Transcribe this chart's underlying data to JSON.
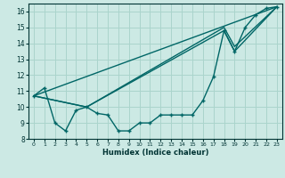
{
  "xlabel": "Humidex (Indice chaleur)",
  "xlim": [
    -0.5,
    23.5
  ],
  "ylim": [
    8,
    16.5
  ],
  "yticks": [
    8,
    9,
    10,
    11,
    12,
    13,
    14,
    15,
    16
  ],
  "xticks": [
    0,
    1,
    2,
    3,
    4,
    5,
    6,
    7,
    8,
    9,
    10,
    11,
    12,
    13,
    14,
    15,
    16,
    17,
    18,
    19,
    20,
    21,
    22,
    23
  ],
  "bg_color": "#cce9e4",
  "grid_color": "#aad4cc",
  "line_color": "#006666",
  "line1_x": [
    0,
    1,
    2,
    3,
    4,
    5,
    6,
    7,
    8,
    9,
    10,
    11,
    12,
    13,
    14,
    15,
    16,
    17,
    18,
    19,
    20,
    21,
    22,
    23
  ],
  "line1_y": [
    10.7,
    11.2,
    9.0,
    8.5,
    9.8,
    10.0,
    9.6,
    9.5,
    8.5,
    8.5,
    9.0,
    9.0,
    9.5,
    9.5,
    9.5,
    9.5,
    10.4,
    11.9,
    14.8,
    13.5,
    15.0,
    15.8,
    16.2,
    16.3
  ],
  "line2_x": [
    0,
    23
  ],
  "line2_y": [
    10.7,
    16.3
  ],
  "line3_x": [
    0,
    5,
    18,
    19,
    23
  ],
  "line3_y": [
    10.7,
    10.0,
    14.8,
    13.5,
    16.3
  ],
  "line4_x": [
    0,
    5,
    18,
    19,
    23
  ],
  "line4_y": [
    10.7,
    10.0,
    15.0,
    13.8,
    16.3
  ]
}
